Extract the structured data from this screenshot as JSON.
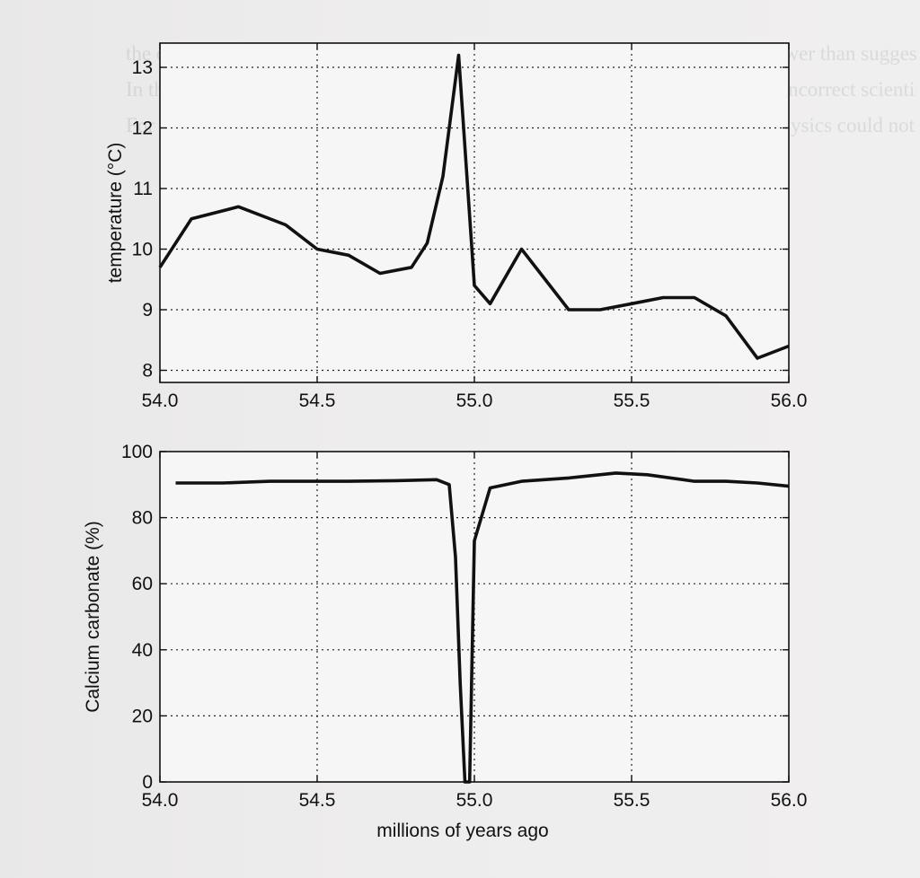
{
  "background_text": "the data may be wrong — perhaps the temperature variation was really much lower than suggested by the proxy data. A later discovery showed the proxy data was misleading. Finally, both the data and theory could be right: there may have been something else from carbon dioxide, for example massive volcanism could account for the sharp rise and released large quantities of carbon dioxide.\nIn this sense even the simplest theory and a single observation can predict how incorrect scientific theories accumulate and the observations do not fit the theory. These anomalies accumulate until the theory is abandoned and a new explanation is found to replace the old theory and replace it with a new one.\nFor example, at the beginning of the twentieth century, the classical theory of physics could not explain how matter and radiation interact with molecular spectra and the physics of the small; classical physics simply did not work at the atomic level, and what emerged was a new paradigm in which quantum mechanics dominated, and classical physics ruled only for the large.",
  "chart_data": [
    {
      "type": "line",
      "xlabel": "",
      "ylabel": "temperature (°C)",
      "xlim": [
        54.0,
        56.0
      ],
      "ylim": [
        7.8,
        13.4
      ],
      "xticks": [
        54.0,
        54.5,
        55.0,
        55.5,
        56.0
      ],
      "xtick_labels": [
        "54.0",
        "54.5",
        "55.0",
        "55.5",
        "56.0"
      ],
      "yticks": [
        8,
        9,
        10,
        11,
        12,
        13
      ],
      "ytick_labels": [
        "8",
        "9",
        "10",
        "11",
        "12",
        "13"
      ],
      "grid": true,
      "series": [
        {
          "x": [
            54.0,
            54.1,
            54.25,
            54.4,
            54.5,
            54.6,
            54.7,
            54.8,
            54.85,
            54.9,
            54.95,
            55.0,
            55.05,
            55.15,
            55.3,
            55.4,
            55.5,
            55.6,
            55.7,
            55.8,
            55.9,
            56.0
          ],
          "y": [
            9.7,
            10.5,
            10.7,
            10.4,
            10.0,
            9.9,
            9.6,
            9.7,
            10.1,
            11.2,
            13.2,
            9.4,
            9.1,
            10.0,
            9.0,
            9.0,
            9.1,
            9.2,
            9.2,
            8.9,
            8.2,
            8.4
          ]
        }
      ]
    },
    {
      "type": "line",
      "xlabel": "millions of years ago",
      "ylabel": "Calcium carbonate (%)",
      "xlim": [
        54.0,
        56.0
      ],
      "ylim": [
        0,
        100
      ],
      "xticks": [
        54.0,
        54.5,
        55.0,
        55.5,
        56.0
      ],
      "xtick_labels": [
        "54.0",
        "54.5",
        "55.0",
        "55.5",
        "56.0"
      ],
      "yticks": [
        0,
        20,
        40,
        60,
        80,
        100
      ],
      "ytick_labels": [
        "0",
        "20",
        "40",
        "60",
        "80",
        "100"
      ],
      "grid": true,
      "series": [
        {
          "x": [
            54.05,
            54.2,
            54.35,
            54.5,
            54.6,
            54.75,
            54.88,
            54.92,
            54.94,
            54.955,
            54.97,
            54.985,
            55.0,
            55.05,
            55.15,
            55.3,
            55.45,
            55.55,
            55.7,
            55.8,
            55.9,
            56.0
          ],
          "y": [
            90.5,
            90.5,
            91.0,
            91.0,
            91.0,
            91.2,
            91.5,
            90.0,
            68.0,
            30.0,
            0.0,
            0.0,
            73.0,
            89.0,
            91.0,
            92.0,
            93.5,
            93.0,
            91.0,
            91.0,
            90.5,
            89.5
          ]
        }
      ]
    }
  ]
}
